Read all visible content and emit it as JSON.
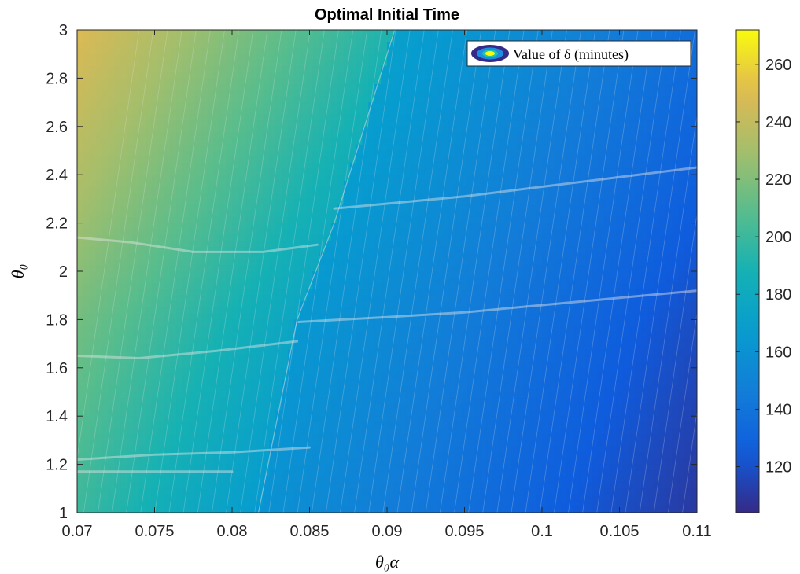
{
  "chart_data": {
    "type": "heatmap",
    "title": "Optimal Initial Time",
    "xlabel": "θ₀α",
    "ylabel": "θ₀",
    "xlim": [
      0.07,
      0.11
    ],
    "ylim": [
      1,
      3
    ],
    "x_ticks": [
      "0.07",
      "0.075",
      "0.08",
      "0.085",
      "0.09",
      "0.095",
      "0.1",
      "0.105",
      "0.11"
    ],
    "y_ticks": [
      "1",
      "1.2",
      "1.4",
      "1.6",
      "1.8",
      "2",
      "2.2",
      "2.4",
      "2.6",
      "2.8",
      "3"
    ],
    "legend": {
      "label": "Value of δ (minutes)",
      "position": "top-right"
    },
    "colorbar": {
      "range": [
        104,
        272
      ],
      "ticks": [
        "120",
        "140",
        "160",
        "180",
        "200",
        "220",
        "240",
        "260"
      ],
      "colormap": "parula"
    },
    "boundary": {
      "description": "jump in optimal initial time",
      "points": [
        [
          0.0817,
          1.0
        ],
        [
          0.0842,
          1.8
        ],
        [
          0.0866,
          2.2
        ],
        [
          0.0905,
          3.0
        ]
      ]
    },
    "ridges": [
      [
        [
          0.07,
          2.14
        ],
        [
          0.0735,
          2.12
        ],
        [
          0.0775,
          2.08
        ],
        [
          0.082,
          2.08
        ],
        [
          0.0855,
          2.11
        ]
      ],
      [
        [
          0.07,
          1.65
        ],
        [
          0.074,
          1.64
        ],
        [
          0.079,
          1.67
        ],
        [
          0.0842,
          1.71
        ]
      ],
      [
        [
          0.0843,
          1.79
        ],
        [
          0.09,
          1.81
        ],
        [
          0.095,
          1.83
        ],
        [
          0.1,
          1.86
        ],
        [
          0.105,
          1.89
        ],
        [
          0.11,
          1.92
        ]
      ],
      [
        [
          0.0866,
          2.26
        ],
        [
          0.09,
          2.28
        ],
        [
          0.095,
          2.31
        ],
        [
          0.1,
          2.35
        ],
        [
          0.105,
          2.39
        ],
        [
          0.11,
          2.43
        ]
      ],
      [
        [
          0.07,
          1.22
        ],
        [
          0.075,
          1.24
        ],
        [
          0.08,
          1.25
        ],
        [
          0.085,
          1.27
        ]
      ],
      [
        [
          0.07,
          1.17
        ],
        [
          0.075,
          1.17
        ],
        [
          0.08,
          1.17
        ]
      ]
    ],
    "colors": {
      "background": "#ffffff",
      "axis": "#262626",
      "contour_line": "#e6e6e6"
    }
  }
}
